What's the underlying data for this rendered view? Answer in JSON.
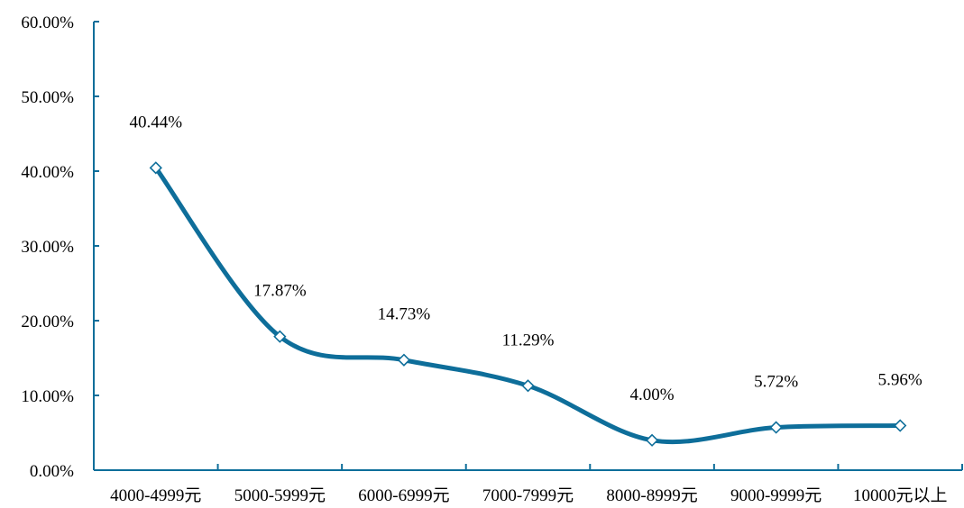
{
  "chart_data": {
    "type": "line",
    "categories": [
      "4000-4999元",
      "5000-5999元",
      "6000-6999元",
      "7000-7999元",
      "8000-8999元",
      "9000-9999元",
      "10000元以上"
    ],
    "values": [
      40.44,
      17.87,
      14.73,
      11.29,
      4.0,
      5.72,
      5.96
    ],
    "data_labels": [
      "40.44%",
      "17.87%",
      "14.73%",
      "11.29%",
      "4.00%",
      "5.72%",
      "5.96%"
    ],
    "y_ticks": [
      "0.00%",
      "10.00%",
      "20.00%",
      "30.00%",
      "40.00%",
      "50.00%",
      "60.00%"
    ],
    "ylim": [
      0,
      60
    ],
    "title": "",
    "xlabel": "",
    "ylabel": "",
    "smooth": true,
    "grid": false,
    "colors": {
      "line": "#0e6e9a",
      "axis": "#0e6e9a",
      "marker_fill": "#ffffff"
    }
  }
}
